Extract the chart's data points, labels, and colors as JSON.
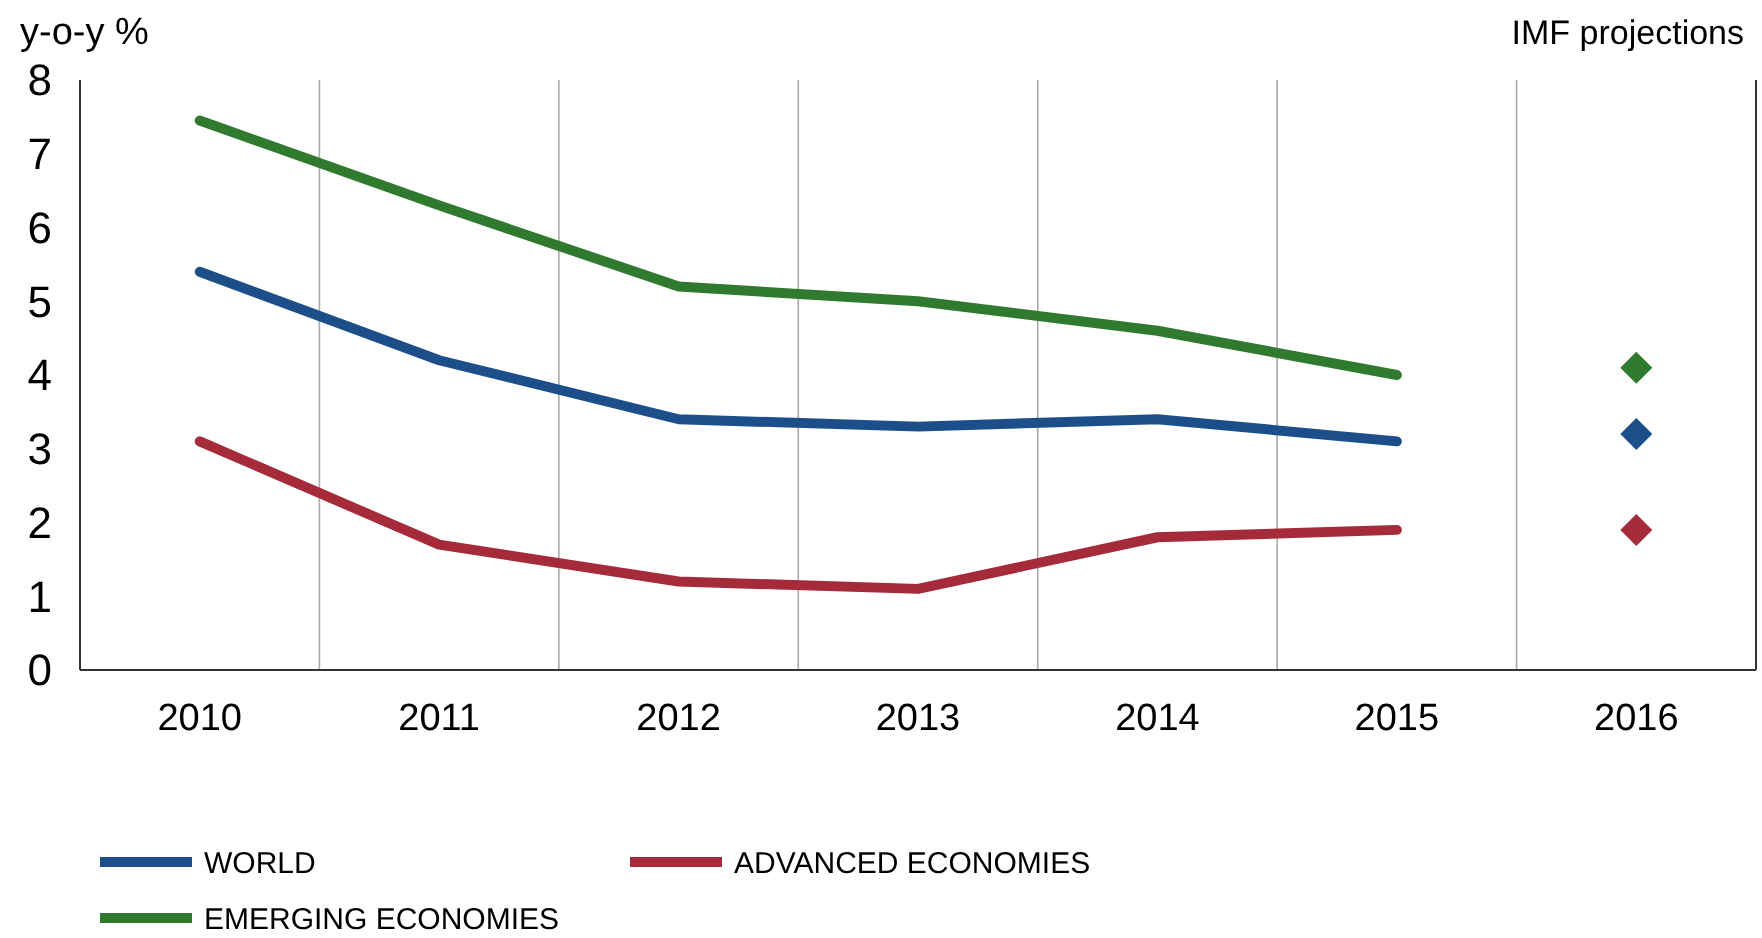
{
  "chart_data": {
    "type": "line",
    "ylabel": "y-o-y %",
    "annotations": [
      "IMF projections"
    ],
    "categories": [
      "2010",
      "2011",
      "2012",
      "2013",
      "2014",
      "2015",
      "2016"
    ],
    "ylim": [
      0,
      8
    ],
    "yticks": [
      0,
      1,
      2,
      3,
      4,
      5,
      6,
      7,
      8
    ],
    "grid": "x",
    "legend": "bottom",
    "line_style": "solid",
    "series": [
      {
        "name": "WORLD",
        "color": "#1c4f8a",
        "values": [
          5.4,
          4.2,
          3.4,
          3.3,
          3.4,
          3.1,
          null
        ]
      },
      {
        "name": "ADVANCED ECONOMIES",
        "color": "#a52a3a",
        "values": [
          3.1,
          1.7,
          1.2,
          1.1,
          1.8,
          1.9,
          null
        ]
      },
      {
        "name": "EMERGING ECONOMIES",
        "color": "#2f7a2f",
        "values": [
          7.45,
          6.3,
          5.2,
          5.0,
          4.6,
          4.0,
          null
        ]
      },
      {
        "type": "scatter",
        "color": "#2f7a2f",
        "values": [
          null,
          null,
          null,
          null,
          null,
          null,
          4.1
        ],
        "marker": "diamond"
      },
      {
        "type": "scatter",
        "color": "#1c4f8a",
        "values": [
          null,
          null,
          null,
          null,
          null,
          null,
          3.2
        ],
        "marker": "diamond"
      },
      {
        "type": "scatter",
        "color": "#a52a3a",
        "values": [
          null,
          null,
          null,
          null,
          null,
          null,
          1.9
        ],
        "marker": "diamond"
      }
    ]
  }
}
